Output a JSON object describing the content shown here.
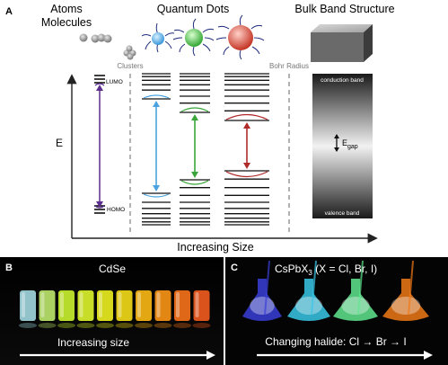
{
  "panel_a": {
    "label": "A",
    "headers": {
      "atoms_line1": "Atoms",
      "atoms_line2": "Molecules",
      "quantum_dots": "Quantum Dots",
      "bulk": "Bulk Band Structure"
    },
    "clusters": "Clusters",
    "bohr_radius": "Bohr Radius",
    "lumo": "LUMO",
    "homo": "HOMO",
    "conduction_band": "conduction band",
    "valence_band": "valence band",
    "egap_main": "E",
    "egap_sub": "gap",
    "y_axis_label": "E",
    "x_axis_label": "Increasing Size",
    "colors": {
      "molecule_arrow": "#5b2d8e",
      "qd_small": "#4aa3e0",
      "qd_medium": "#3aa63a",
      "qd_large": "#b02a2a",
      "qd_ligand": "#1d2a7a"
    }
  },
  "panel_b": {
    "label": "B",
    "title": "CdSe",
    "caption": "Increasing size",
    "vial_colors": [
      "#9ed4dc",
      "#b9e36a",
      "#c7ee2e",
      "#d8f02a",
      "#e8ea20",
      "#f0d818",
      "#f5b514",
      "#f59216",
      "#f2701a",
      "#ee5a1e"
    ]
  },
  "panel_c": {
    "label": "C",
    "title_main": "CsPbX",
    "title_sub": "3",
    "title_rest": " (X = Cl, Br, I)",
    "caption": "Changing halide: Cl → Br → I",
    "flask_colors": [
      "#3a40d8",
      "#38c8e8",
      "#60e890",
      "#f07a18"
    ]
  }
}
